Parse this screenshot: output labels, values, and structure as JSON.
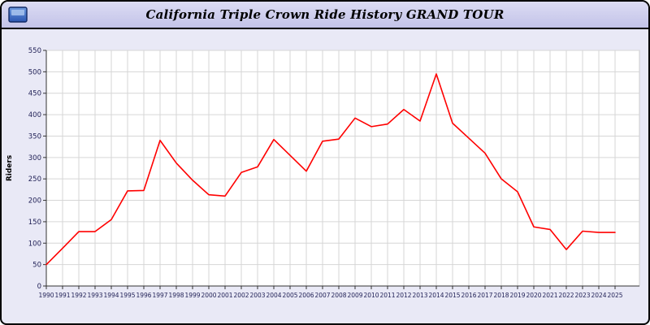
{
  "header": {
    "title": "California Triple Crown Ride History GRAND TOUR",
    "icon": "window-flag-icon"
  },
  "colors": {
    "window_bg": "#e9e9f6",
    "titlebar_bg": "#c9c9ea",
    "line": "#ff0000",
    "grid": "#d6d6d6",
    "axis": "#333333",
    "tick_text": "#1f1f55",
    "plot_bg": "#ffffff",
    "icon_blue": "#3366cc"
  },
  "chart_data": {
    "type": "line",
    "title": "California Triple Crown Ride History GRAND TOUR",
    "xlabel": "",
    "ylabel": "Riders",
    "ylim": [
      0,
      550
    ],
    "ytick_step": 50,
    "grid": true,
    "legend_position": "none",
    "x": [
      1990,
      1991,
      1992,
      1993,
      1994,
      1995,
      1996,
      1997,
      1998,
      1999,
      2000,
      2001,
      2002,
      2003,
      2004,
      2005,
      2006,
      2007,
      2008,
      2009,
      2010,
      2011,
      2012,
      2013,
      2014,
      2015,
      2016,
      2017,
      2018,
      2019,
      2020,
      2021,
      2022,
      2023,
      2024,
      2025
    ],
    "series": [
      {
        "name": "Riders",
        "color": "#ff0000",
        "values": [
          50,
          88,
          127,
          127,
          155,
          222,
          223,
          340,
          287,
          247,
          213,
          210,
          265,
          278,
          342,
          305,
          268,
          338,
          343,
          392,
          372,
          378,
          412,
          385,
          495,
          380,
          345,
          310,
          250,
          220,
          138,
          132,
          85,
          128,
          125,
          125
        ]
      }
    ]
  }
}
